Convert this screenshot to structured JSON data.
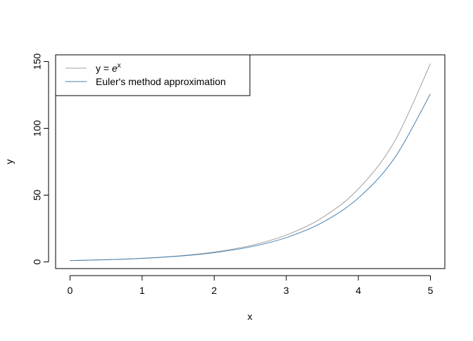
{
  "chart_data": {
    "type": "line",
    "xlabel": "x",
    "ylabel": "y",
    "xlim": [
      -0.2,
      5.2
    ],
    "ylim": [
      -5,
      155
    ],
    "x_ticks": [
      0,
      1,
      2,
      3,
      4,
      5
    ],
    "y_ticks": [
      0,
      50,
      100,
      150
    ],
    "grid": false,
    "legend_position": "top-left",
    "series": [
      {
        "name": "y = e^x",
        "legend_prefix": "y = ",
        "legend_base": "e",
        "legend_exponent": "x",
        "color": "#a0a0a0",
        "x": [
          0,
          0.5,
          1,
          1.5,
          2,
          2.5,
          3,
          3.5,
          4,
          4.5,
          5
        ],
        "y": [
          1,
          1.65,
          2.72,
          4.48,
          7.39,
          12.18,
          20.09,
          33.12,
          54.6,
          90.02,
          148.41
        ]
      },
      {
        "name": "Euler's method approximation",
        "color": "#4682b4",
        "x": [
          0,
          0.5,
          1,
          1.5,
          2,
          2.5,
          3,
          3.5,
          4,
          4.5,
          5
        ],
        "y": [
          1,
          1.62,
          2.63,
          4.27,
          6.92,
          11.22,
          18.19,
          29.5,
          47.85,
          77.6,
          125.8
        ]
      }
    ]
  }
}
